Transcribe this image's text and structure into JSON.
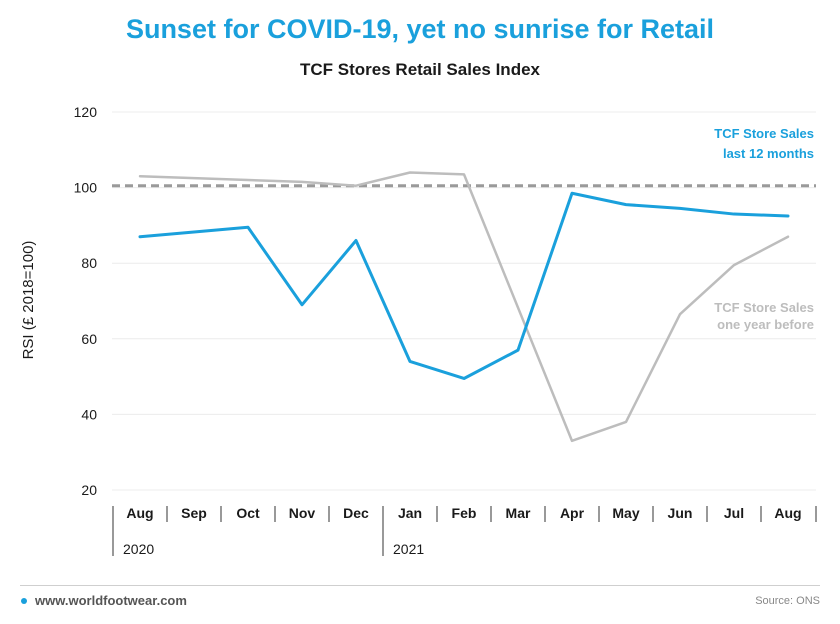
{
  "headline": "Sunset for COVID-19, yet no sunrise for Retail",
  "colors": {
    "headline": "#1aa0dc",
    "current": "#1aa0dc",
    "previous": "#bdbdbd",
    "reference": "#9a9a9a"
  },
  "chart_data": {
    "type": "line",
    "title": "TCF Stores Retail Sales Index",
    "ylabel": "RSI (£ 2018=100)",
    "xlabel": "",
    "ylim": [
      20,
      120
    ],
    "yticks": [
      20,
      40,
      60,
      80,
      100,
      120
    ],
    "grid": true,
    "categories": [
      "Aug",
      "Sep",
      "Oct",
      "Nov",
      "Dec",
      "Jan",
      "Feb",
      "Mar",
      "Apr",
      "May",
      "Jun",
      "Jul",
      "Aug"
    ],
    "years": [
      {
        "label": "2020",
        "start_index": 0
      },
      {
        "label": "2021",
        "start_index": 5
      }
    ],
    "reference_line": 100.5,
    "series": [
      {
        "name": "TCF Store Sales last 12 months",
        "label_lines": [
          "TCF Store Sales",
          "last 12 months"
        ],
        "color": "#1aa0dc",
        "x": [
          0,
          2,
          3,
          4,
          5,
          6,
          7,
          8,
          9,
          10,
          11,
          12
        ],
        "values": [
          87,
          89.5,
          69,
          86,
          54,
          49.5,
          57,
          98.5,
          95.5,
          94.5,
          93,
          92.5
        ]
      },
      {
        "name": "TCF Store Sales one year before",
        "label_lines": [
          "TCF Store Sales",
          "one year before"
        ],
        "color": "#bdbdbd",
        "x": [
          0,
          2,
          3,
          4,
          5,
          6,
          8,
          9,
          10,
          11,
          12
        ],
        "values": [
          103,
          102,
          101.5,
          100.5,
          104,
          103.5,
          33,
          38,
          66.5,
          79.5,
          87
        ]
      }
    ]
  },
  "footer": {
    "site": "www.worldfootwear.com",
    "source": "Source: ONS"
  }
}
